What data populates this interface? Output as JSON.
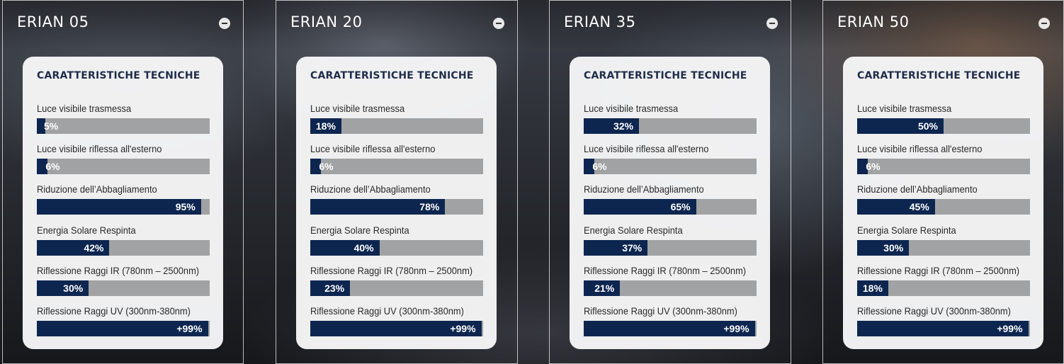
{
  "section_heading": "CARATTERISTICHE TECNICHE",
  "labels": [
    "Luce visibile trasmessa",
    "Luce visibile riflessa all'esterno",
    "Riduzione dell’Abbagliamento",
    "Energia Solare Respinta",
    "Riflessione Raggi IR (780nm – 2500nm)",
    "Riflessione Raggi UV (300nm-380nm)"
  ],
  "panels": [
    {
      "title": "ERIAN 05",
      "values": [
        {
          "text": "5%",
          "level": 5
        },
        {
          "text": "6%",
          "level": 6
        },
        {
          "text": "95%",
          "level": 95
        },
        {
          "text": "42%",
          "level": 42
        },
        {
          "text": "30%",
          "level": 30
        },
        {
          "text": "+99%",
          "level": 99
        }
      ]
    },
    {
      "title": "ERIAN 20",
      "values": [
        {
          "text": "18%",
          "level": 18
        },
        {
          "text": "6%",
          "level": 6
        },
        {
          "text": "78%",
          "level": 78
        },
        {
          "text": "40%",
          "level": 40
        },
        {
          "text": "23%",
          "level": 23
        },
        {
          "text": "+99%",
          "level": 99
        }
      ]
    },
    {
      "title": "ERIAN 35",
      "values": [
        {
          "text": "32%",
          "level": 32
        },
        {
          "text": "6%",
          "level": 6
        },
        {
          "text": "65%",
          "level": 65
        },
        {
          "text": "37%",
          "level": 37
        },
        {
          "text": "21%",
          "level": 21
        },
        {
          "text": "+99%",
          "level": 99
        }
      ]
    },
    {
      "title": "ERIAN 50",
      "values": [
        {
          "text": "50%",
          "level": 50
        },
        {
          "text": "6%",
          "level": 6
        },
        {
          "text": "45%",
          "level": 45
        },
        {
          "text": "30%",
          "level": 30
        },
        {
          "text": "18%",
          "level": 18
        },
        {
          "text": "+99%",
          "level": 99
        }
      ]
    }
  ],
  "colors": {
    "bar_fill": "#0d2650",
    "bar_track": "#a1a2a3",
    "heading": "#1f2d4a",
    "card_bg": "#f6f6f7"
  },
  "icons": {
    "collapse_button": "minus-circle-icon"
  }
}
